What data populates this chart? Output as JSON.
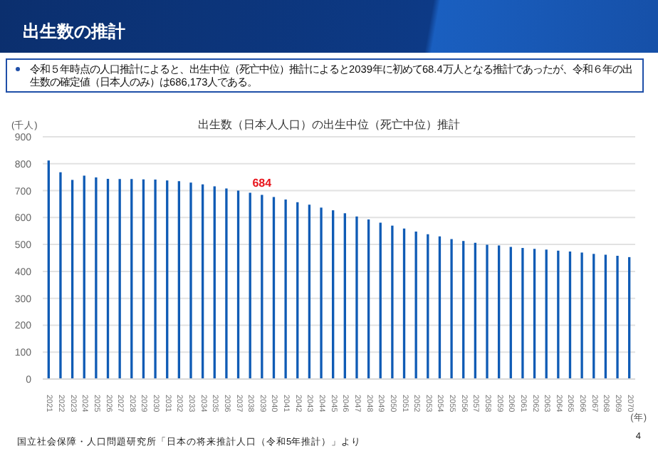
{
  "chart_data": {
    "type": "bar",
    "title": "出生数の推計",
    "subtitle": "出生数（日本人人口）の出生中位（死亡中位）推計",
    "ylabel": "(千人)",
    "xlabel": "(年)",
    "categories": [
      "2021",
      "2022",
      "2023",
      "2024",
      "2025",
      "2026",
      "2027",
      "2028",
      "2029",
      "2030",
      "2031",
      "2032",
      "2033",
      "2034",
      "2035",
      "2036",
      "2037",
      "2038",
      "2039",
      "2040",
      "2041",
      "2042",
      "2043",
      "2044",
      "2045",
      "2046",
      "2047",
      "2048",
      "2049",
      "2050",
      "2051",
      "2052",
      "2053",
      "2054",
      "2055",
      "2056",
      "2057",
      "2058",
      "2059",
      "2060",
      "2061",
      "2062",
      "2063",
      "2064",
      "2065",
      "2066",
      "2067",
      "2068",
      "2069",
      "2070"
    ],
    "values": [
      812,
      768,
      740,
      756,
      749,
      744,
      743,
      743,
      742,
      741,
      738,
      735,
      730,
      723,
      716,
      708,
      700,
      692,
      684,
      676,
      667,
      657,
      648,
      637,
      627,
      616,
      604,
      593,
      581,
      570,
      559,
      548,
      538,
      530,
      520,
      513,
      506,
      499,
      496,
      491,
      487,
      484,
      481,
      477,
      474,
      470,
      465,
      462,
      458,
      453
    ],
    "color": "#0f5bb5",
    "ylim": [
      0,
      900
    ],
    "yticks": [
      0,
      100,
      200,
      300,
      400,
      500,
      600,
      700,
      800,
      900
    ],
    "grid": "y",
    "legend": false,
    "annotations": [
      "令和５年時点の人口推計によると、出生中位（死亡中位）推計によると2039年に初めて68.4万人となる推計であったが、令和６年の出生数の確定値（日本人のみ）は686,173人である。",
      "国立社会保障・人口問題研究所「日本の将来推計人口（令和5年推計）」より",
      "4",
      {
        "text": "684",
        "x": "2039",
        "y": 684
      }
    ]
  }
}
